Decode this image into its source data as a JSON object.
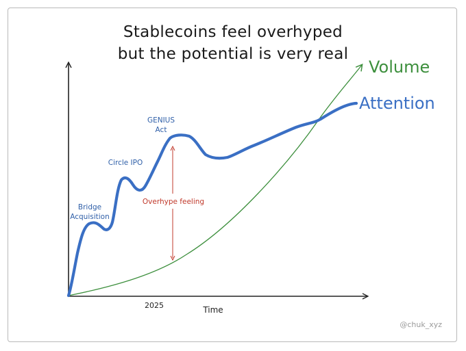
{
  "title_line1": "Stablecoins feel overhyped",
  "title_line2": "but the potential is very real",
  "x_axis_label": "Time",
  "x_tick_label": "2025",
  "series": {
    "volume": {
      "label": "Volume",
      "color": "#3d8f3d"
    },
    "attention": {
      "label": "Attention",
      "color": "#3a6fc4"
    }
  },
  "annotations": {
    "bridge_line1": "Bridge",
    "bridge_line2": "Acquisition",
    "circle_ipo": "Circle IPO",
    "genius_line1": "GENIUS",
    "genius_line2": "Act",
    "overhype": "Overhype feeling"
  },
  "annotation_color": "#c0392b",
  "watermark": "@chuk_xyz"
}
